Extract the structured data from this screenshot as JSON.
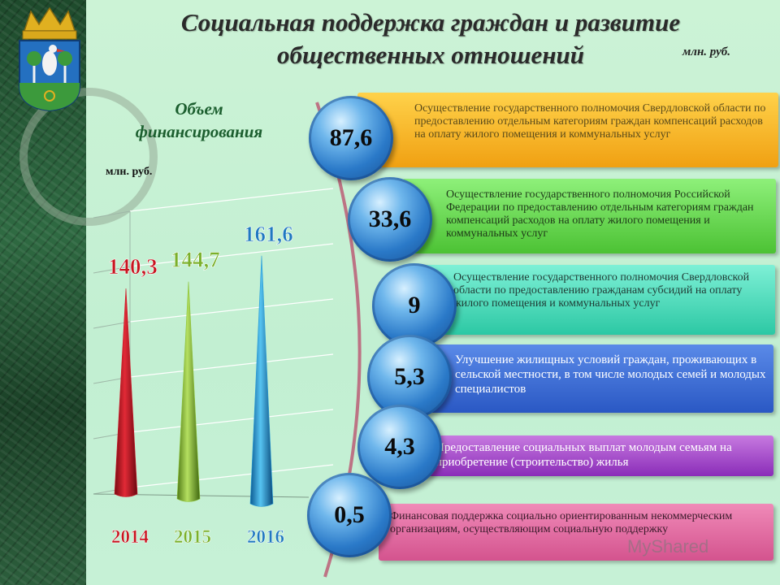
{
  "header": {
    "title_line1": "Социальная поддержка граждан и развитие",
    "title_line2": "общественных отношений",
    "unit": "млн. руб."
  },
  "left_panel": {
    "subtitle_line1": "Объем",
    "subtitle_line2": "финансирования",
    "unit": "млн. руб."
  },
  "colors": {
    "year_2014": "#d0192a",
    "year_2015": "#8fc53a",
    "year_2016": "#2a9fd8"
  },
  "chart_data": [
    {
      "type": "bar",
      "categories": [
        "2014",
        "2015",
        "2016"
      ],
      "values": [
        140.3,
        144.7,
        161.6
      ],
      "value_labels": [
        "140,3",
        "144,7",
        "161,6"
      ],
      "ylim": [
        0,
        180
      ],
      "grid": true
    },
    {
      "type": "table",
      "items": [
        {
          "value": "87,6",
          "text": "Осуществление государственного полномочия Свердловской области по предоставлению отдельным категориям граждан компенсаций расходов на оплату жилого помещения и коммунальных услуг"
        },
        {
          "value": "33,6",
          "text": "Осуществление государственного полномочия Российской Федерации по предоставлению отдельным категориям граждан компенсаций расходов на оплату жилого помещения и коммунальных услуг"
        },
        {
          "value": "9",
          "text": "Осуществление государственного полномочия Свердловской области по предоставлению гражданам субсидий на оплату жилого помещения и коммунальных услуг"
        },
        {
          "value": "5,3",
          "text": "Улучшение жилищных условий граждан, проживающих в сельской местности, в том числе молодых семей и молодых специалистов"
        },
        {
          "value": "4,3",
          "text": "Предоставление социальных выплат молодым семьям на приобретение (строительство) жилья"
        },
        {
          "value": "0,5",
          "text": "Финансовая поддержка социально ориентированным некоммерческим организациям, осуществляющим социальную поддержку"
        }
      ]
    }
  ],
  "watermark": "MyShared"
}
